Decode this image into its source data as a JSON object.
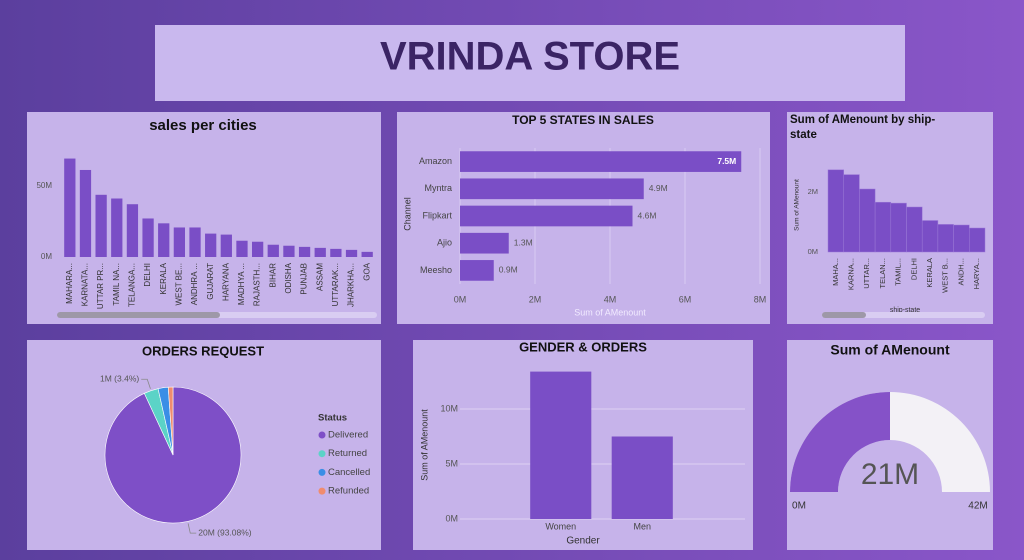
{
  "dashboard_title": "VRINDA STORE",
  "chart_data": [
    {
      "type": "bar",
      "title": "sales per cities",
      "categories": [
        "MAHARA...",
        "KARNATA...",
        "UTTAR PR...",
        "TAMIL NA...",
        "TELANGA...",
        "DELHI",
        "KERALA",
        "WEST BE...",
        "ANDHRA ...",
        "GUJARAT",
        "HARYANA",
        "MADHYA ...",
        "RAJASTH...",
        "BIHAR",
        "ODISHA",
        "PUNJAB",
        "ASSAM",
        "UTTARAK...",
        "JHARKHA...",
        "GOA"
      ],
      "values": [
        69,
        61,
        43.6,
        41,
        37,
        27,
        23.6,
        20.7,
        20.7,
        16.4,
        15.7,
        11.4,
        10.7,
        8.6,
        7.9,
        7.1,
        6.4,
        5.7,
        5,
        3.6
      ],
      "color": "#7a4ec6",
      "ylim": [
        0,
        75
      ],
      "yticks": [
        {
          "value": 0,
          "label": "0M"
        },
        {
          "value": 50,
          "label": "50M"
        }
      ],
      "grid": false
    },
    {
      "type": "bar",
      "orientation": "horizontal",
      "title": "TOP 5 STATES IN SALES",
      "categories": [
        "Amazon",
        "Myntra",
        "Flipkart",
        "Ajio",
        "Meesho"
      ],
      "values": [
        7.5,
        4.9,
        4.6,
        1.3,
        0.9
      ],
      "value_labels": [
        "7.5M",
        "4.9M",
        "4.6M",
        "1.3M",
        "0.9M"
      ],
      "color": "#7a4ec6",
      "xlabel": "Sum of AMenount",
      "ylabel": "Channel",
      "xlim": [
        0,
        8
      ],
      "xticks": [
        {
          "value": 0,
          "label": "0M"
        },
        {
          "value": 2,
          "label": "2M"
        },
        {
          "value": 4,
          "label": "4M"
        },
        {
          "value": 6,
          "label": "6M"
        },
        {
          "value": 8,
          "label": "8M"
        }
      ],
      "grid": true
    },
    {
      "type": "bar",
      "title": "Sum of AMenount by ship-state",
      "categories": [
        "MAHA...",
        "KARNA...",
        "UTTAR...",
        "TELAN...",
        "TAMIL...",
        "DELHI",
        "KERALA",
        "WEST B...",
        "ANDH...",
        "HARYA..."
      ],
      "values": [
        2.74,
        2.58,
        2.1,
        1.66,
        1.63,
        1.5,
        1.05,
        0.92,
        0.9,
        0.8
      ],
      "color": "#7a4ec6",
      "xlabel": "ship-state",
      "ylabel": "Sum of AMenount",
      "ylim": [
        0,
        3
      ],
      "yticks": [
        {
          "value": 0,
          "label": "0M"
        },
        {
          "value": 2,
          "label": "2M"
        }
      ],
      "grid": false
    },
    {
      "type": "pie",
      "title": "ORDERS REQUEST",
      "legend_title": "Status",
      "categories": [
        "Delivered",
        "Returned",
        "Cancelled",
        "Refunded"
      ],
      "values": [
        93.08,
        3.4,
        2.4,
        1.12
      ],
      "value_labels": [
        "20M (93.08%)",
        "1M (3.4%)",
        null,
        null
      ],
      "colors": [
        "#7e4fc7",
        "#5bd3c7",
        "#3a8ee6",
        "#f08c6e"
      ],
      "legend": "right"
    },
    {
      "type": "bar",
      "title": "GENDER & ORDERS",
      "categories": [
        "Women",
        "Men"
      ],
      "values": [
        13.4,
        7.5
      ],
      "color": "#7a4ec6",
      "xlabel": "Gender",
      "ylabel": "Sum of AMenount",
      "ylim": [
        0,
        14
      ],
      "yticks": [
        {
          "value": 0,
          "label": "0M"
        },
        {
          "value": 5,
          "label": "5M"
        },
        {
          "value": 10,
          "label": "10M"
        }
      ],
      "grid": true
    },
    {
      "type": "gauge",
      "title": "Sum of AMenount",
      "value": 21,
      "value_label": "21M",
      "color": "#8552c8",
      "track_color": "#f3f1f6",
      "ylim": [
        0,
        42
      ],
      "yticks": [
        {
          "value": 0,
          "label": "0M"
        },
        {
          "value": 42,
          "label": "42M"
        }
      ]
    }
  ]
}
